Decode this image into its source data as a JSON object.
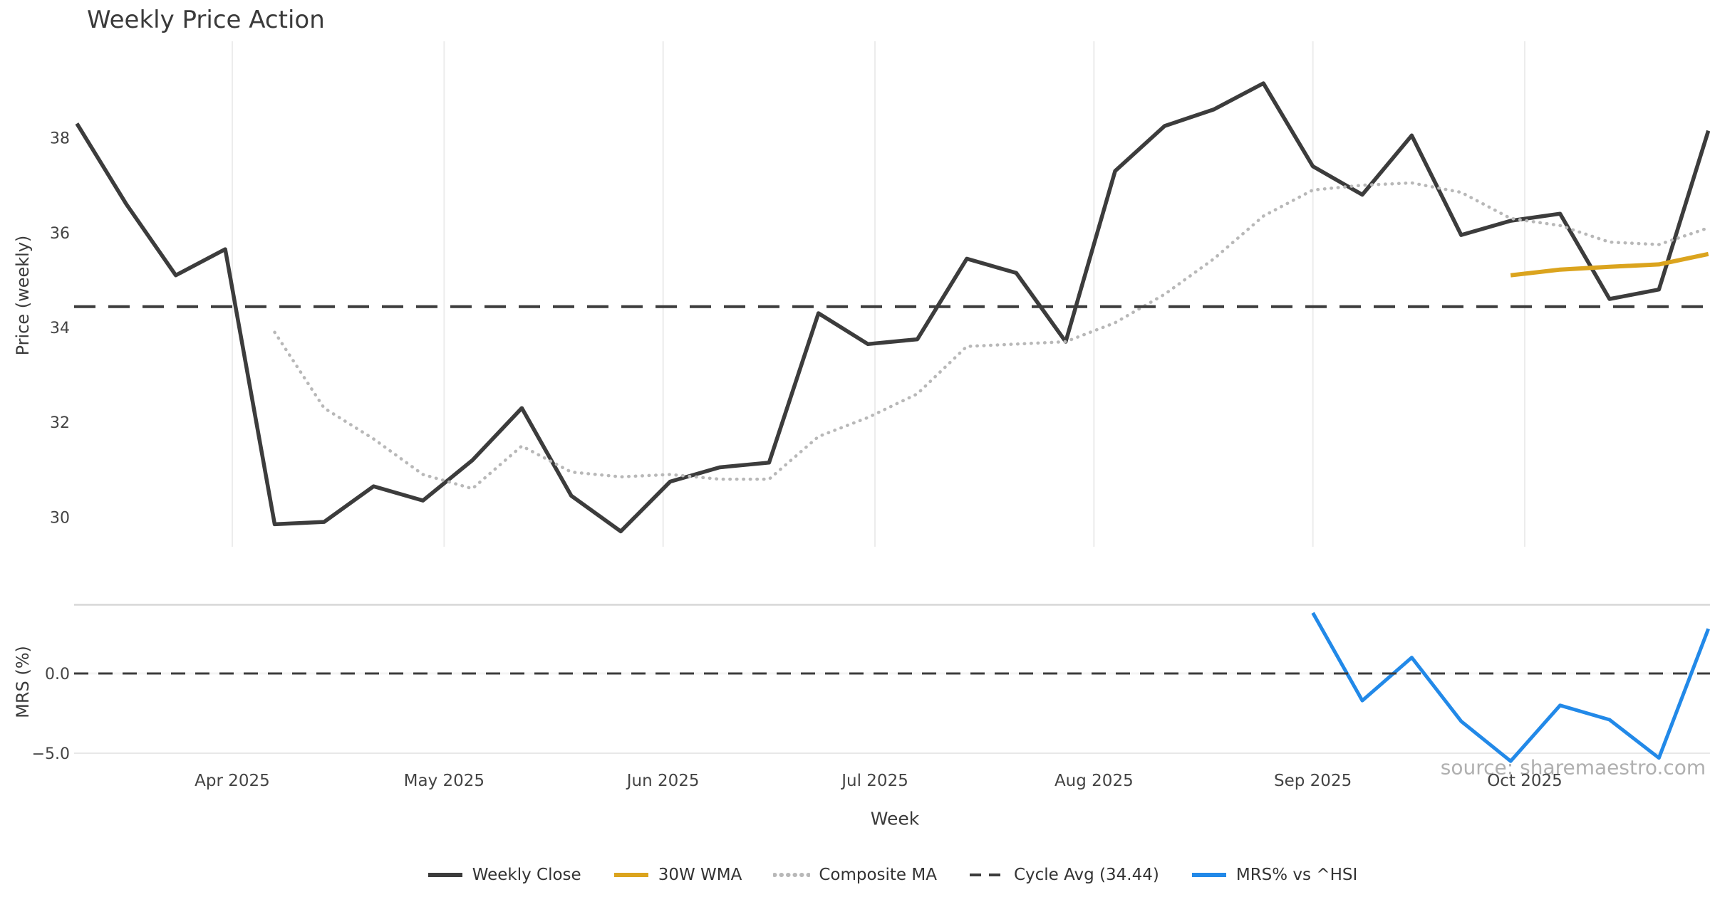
{
  "title": "Weekly Price Action",
  "watermark": "source: sharemaestro.com",
  "colors": {
    "close": "#3c3c3c",
    "wma": "#DBA41E",
    "composite": "#b8b8b8",
    "cycle": "#3c3c3c",
    "mrs": "#2289E8",
    "grid": "#ececec",
    "separator": "#d7d7d7",
    "grid_minor": "#e8e8e8",
    "zero_ghost": "#f5f5f5",
    "title_text": "#3a3a3a",
    "tick_text": "#444444",
    "watermark_text": "#a3a3a3"
  },
  "axes": {
    "x": {
      "label": "Week",
      "ticks": [
        {
          "label": "Apr 2025",
          "day_offset": 0
        },
        {
          "label": "May 2025",
          "day_offset": 30
        },
        {
          "label": "Jun 2025",
          "day_offset": 61
        },
        {
          "label": "Jul 2025",
          "day_offset": 91
        },
        {
          "label": "Aug 2025",
          "day_offset": 122
        },
        {
          "label": "Sep 2025",
          "day_offset": 153
        },
        {
          "label": "Oct 2025",
          "day_offset": 183
        }
      ]
    },
    "price": {
      "ylabel": "Price (weekly)",
      "ticks": [
        "38",
        "36",
        "34",
        "32",
        "30"
      ]
    },
    "mrs": {
      "ylabel": "MRS (%)",
      "ticks": [
        {
          "label": "0.0",
          "value": 0
        },
        {
          "label": "−5.0",
          "value": -5
        }
      ]
    }
  },
  "legend": [
    {
      "label": "Weekly Close",
      "series": "close",
      "style": "solid"
    },
    {
      "label": "30W WMA",
      "series": "wma",
      "style": "solid"
    },
    {
      "label": "Composite MA",
      "series": "composite",
      "style": "dotted"
    },
    {
      "label": "Cycle Avg (34.44)",
      "series": "cycle",
      "style": "dashed"
    },
    {
      "label": "MRS% vs ^HSI",
      "series": "mrs",
      "style": "solid"
    }
  ],
  "chart_data": {
    "type": "line",
    "title": "Weekly Price Action",
    "xlabel": "Week",
    "x_weekly_dates": [
      "2025-03-10",
      "2025-03-17",
      "2025-03-24",
      "2025-03-31",
      "2025-04-07",
      "2025-04-14",
      "2025-04-21",
      "2025-04-28",
      "2025-05-05",
      "2025-05-12",
      "2025-05-19",
      "2025-05-26",
      "2025-06-02",
      "2025-06-09",
      "2025-06-16",
      "2025-06-23",
      "2025-06-30",
      "2025-07-07",
      "2025-07-14",
      "2025-07-21",
      "2025-07-28",
      "2025-08-04",
      "2025-08-11",
      "2025-08-18",
      "2025-08-25",
      "2025-09-01",
      "2025-09-08",
      "2025-09-15",
      "2025-09-22",
      "2025-09-29",
      "2025-10-06",
      "2025-10-13",
      "2025-10-20",
      "2025-10-27"
    ],
    "panels": [
      {
        "name": "price",
        "ylabel": "Price (weekly)",
        "ylim": [
          27.9,
          40.1
        ],
        "yticks": [
          38,
          36,
          34,
          32,
          30
        ],
        "grid": "vertical-months",
        "series": [
          {
            "name": "Weekly Close",
            "color_key": "close",
            "start_index": 0,
            "values": [
              38.3,
              36.6,
              35.1,
              35.65,
              29.85,
              29.9,
              30.65,
              30.35,
              31.2,
              32.3,
              30.45,
              29.7,
              30.75,
              31.05,
              31.15,
              34.3,
              33.65,
              33.75,
              35.45,
              35.15,
              33.7,
              37.3,
              38.25,
              38.6,
              39.15,
              37.4,
              36.8,
              38.05,
              35.95,
              36.25,
              36.4,
              34.6,
              34.8,
              38.15
            ]
          },
          {
            "name": "Composite MA",
            "color_key": "composite",
            "start_index": 4,
            "values": [
              33.9,
              32.3,
              31.65,
              30.9,
              30.6,
              31.5,
              30.95,
              30.85,
              30.9,
              30.8,
              30.8,
              31.7,
              32.1,
              32.6,
              33.6,
              33.65,
              33.7,
              34.1,
              34.7,
              35.45,
              36.35,
              36.9,
              37.0,
              37.05,
              36.85,
              36.3,
              36.15,
              35.8,
              35.75,
              36.1
            ]
          },
          {
            "name": "30W WMA",
            "color_key": "wma",
            "start_index": 29,
            "values": [
              35.1,
              35.22,
              35.28,
              35.33,
              35.55
            ]
          },
          {
            "name": "Cycle Avg",
            "color_key": "cycle",
            "type": "hline",
            "value": 34.44
          }
        ]
      },
      {
        "name": "mrs",
        "ylabel": "MRS (%)",
        "ylim": [
          -5.8,
          4.35
        ],
        "yticks": [
          0.0,
          -5.0
        ],
        "series": [
          {
            "name": "MRS% vs ^HSI",
            "color_key": "mrs",
            "start_index": 25,
            "values": [
              3.8,
              -1.7,
              1.0,
              -3.0,
              -5.5,
              -2.0,
              -2.9,
              -5.3,
              2.8
            ]
          },
          {
            "name": "Zero line",
            "color_key": "cycle",
            "type": "hline",
            "value": 0
          }
        ]
      }
    ],
    "legend_position": "bottom-center"
  }
}
